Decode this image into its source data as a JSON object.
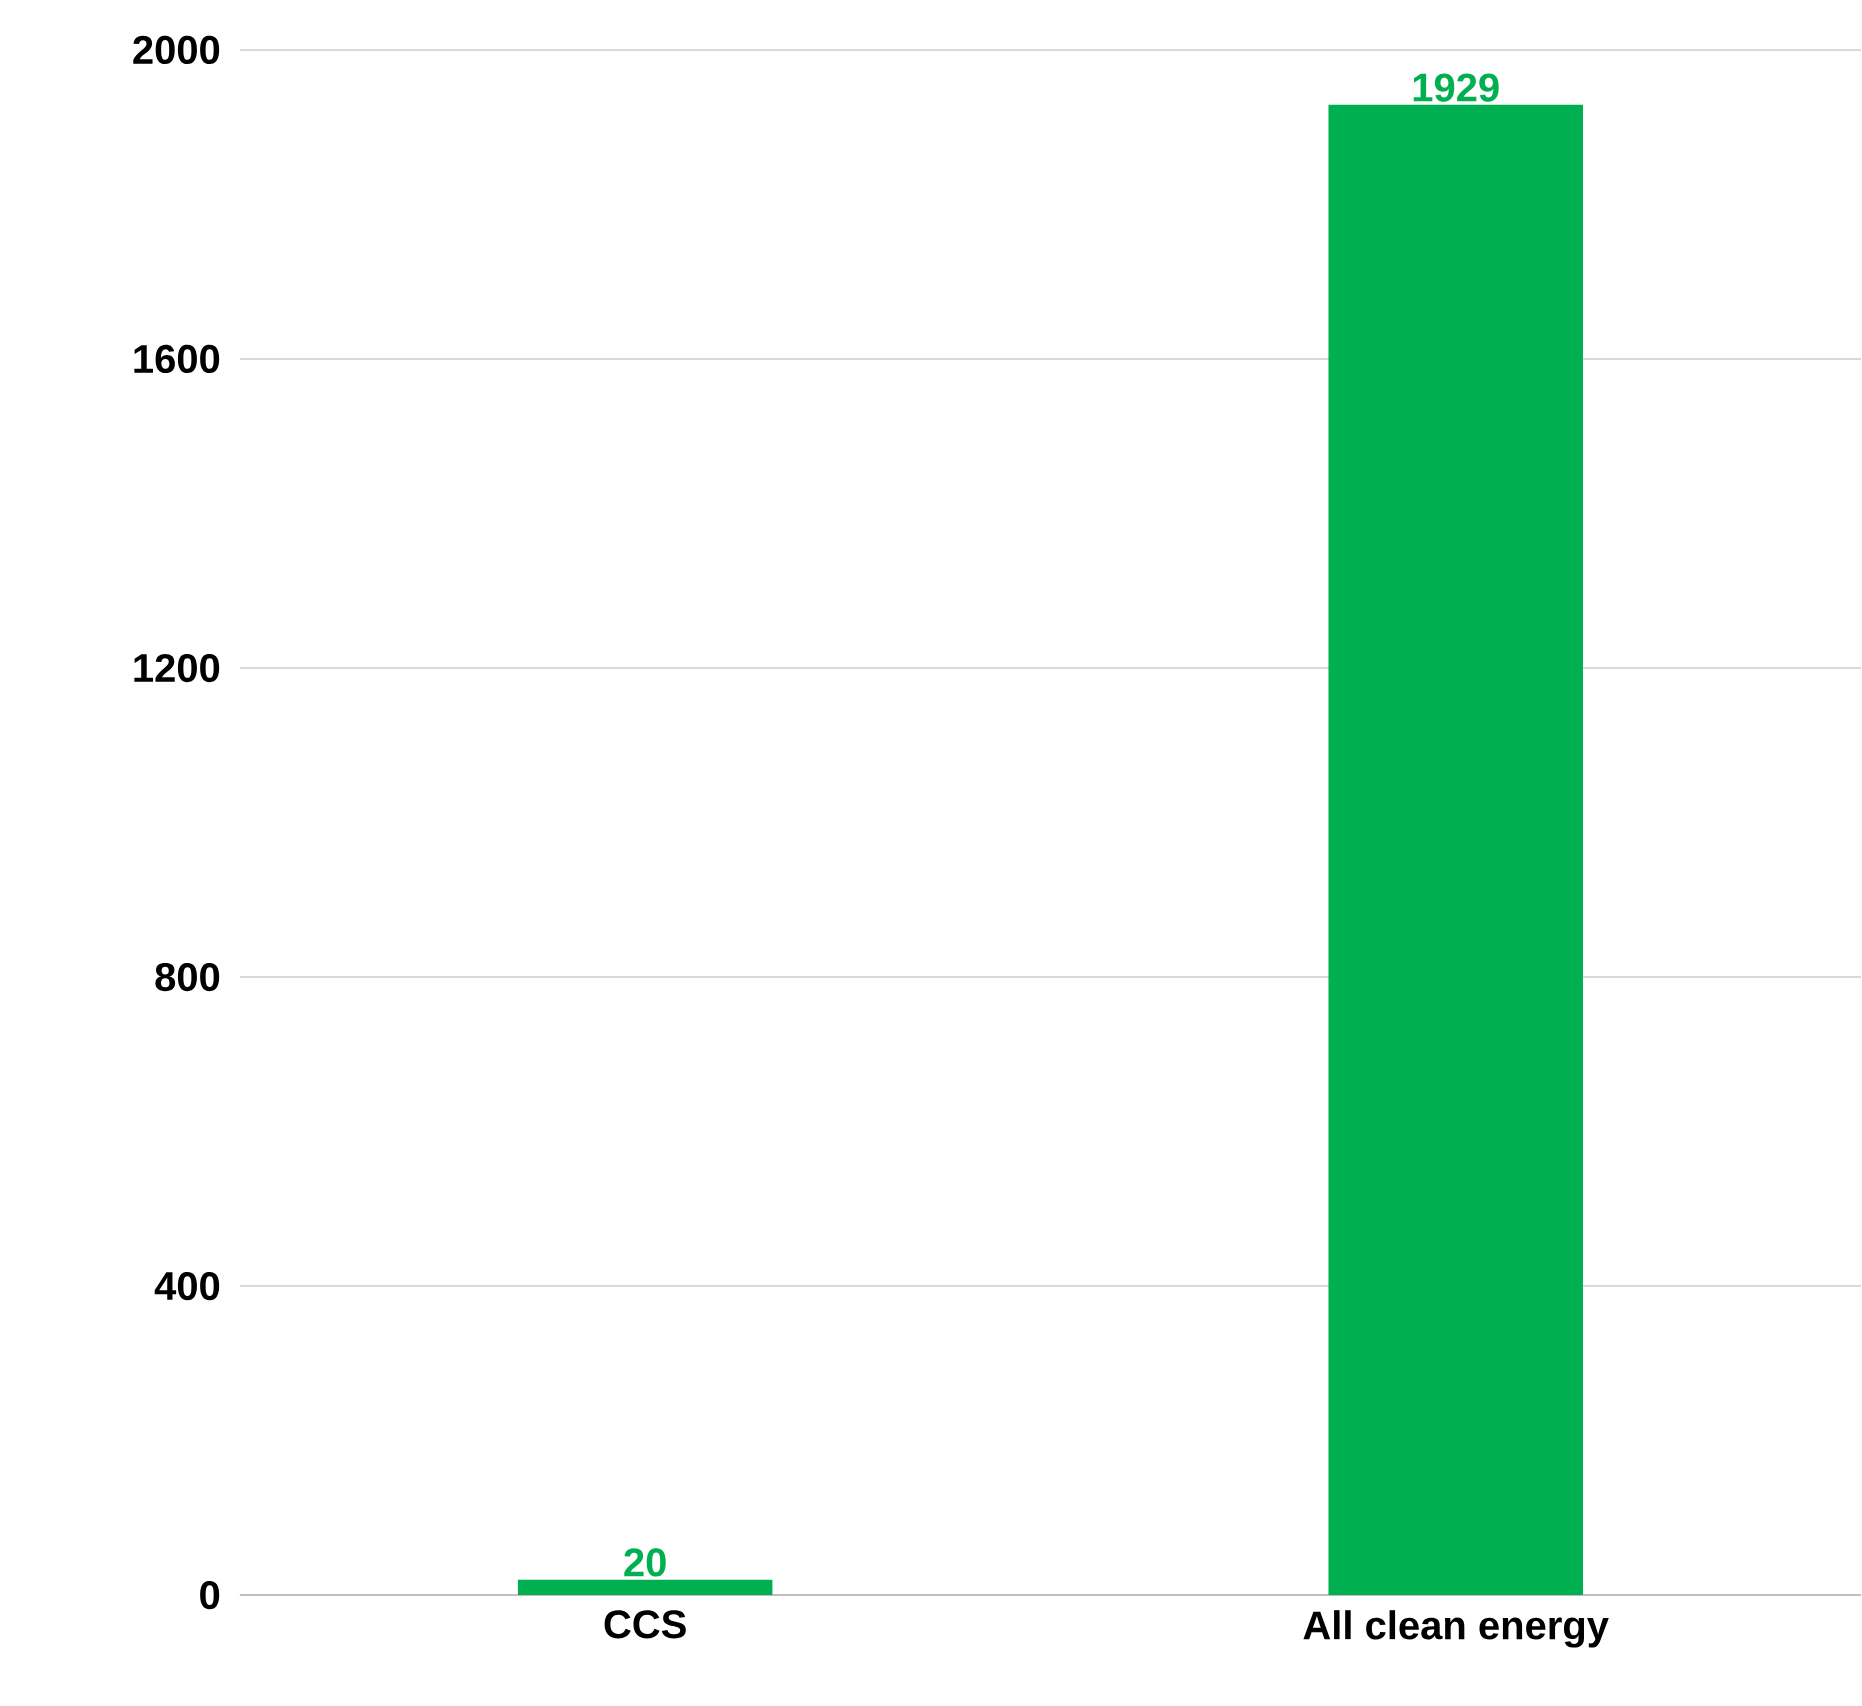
{
  "chart_data": {
    "type": "bar",
    "categories": [
      "CCS",
      "All clean energy"
    ],
    "values": [
      20,
      1929
    ],
    "color": "#00b050",
    "ylim": [
      0,
      2000
    ],
    "yticks": [
      0,
      400,
      800,
      1200,
      1600,
      2000
    ],
    "grid": "y",
    "data_labels": true
  }
}
